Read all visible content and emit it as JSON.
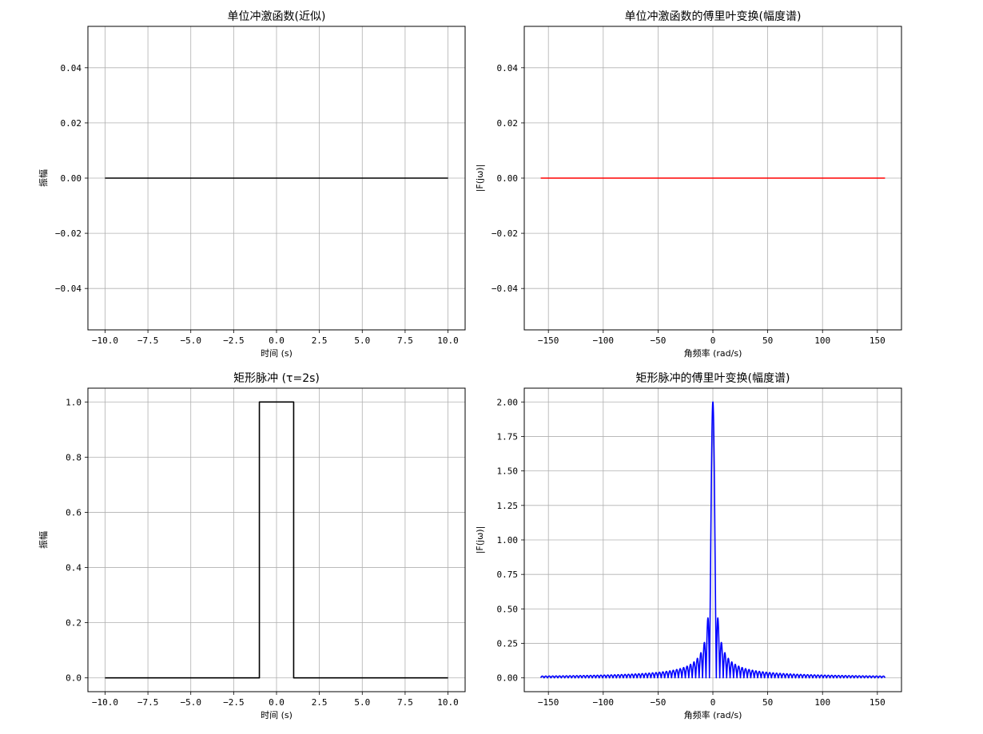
{
  "chart_data": [
    {
      "type": "line",
      "title": "单位冲激函数(近似)",
      "xlabel": "时间 (s)",
      "ylabel": "振幅",
      "xlim": [
        -11,
        11
      ],
      "ylim": [
        -0.055,
        0.055
      ],
      "xticks": [
        -10,
        -7.5,
        -5,
        -2.5,
        0,
        2.5,
        5,
        7.5,
        10
      ],
      "xtick_labels": [
        "−10.0",
        "−7.5",
        "−5.0",
        "−2.5",
        "0.0",
        "2.5",
        "5.0",
        "7.5",
        "10.0"
      ],
      "yticks": [
        -0.04,
        -0.02,
        0,
        0.02,
        0.04
      ],
      "ytick_labels": [
        "−0.04",
        "−0.02",
        "0.00",
        "0.02",
        "0.04"
      ],
      "grid": true,
      "series": [
        {
          "color": "#000000",
          "x": [
            -10,
            10
          ],
          "y": [
            0,
            0
          ]
        }
      ]
    },
    {
      "type": "line",
      "title": "单位冲激函数的傅里叶变换(幅度谱)",
      "xlabel": "角频率 (rad/s)",
      "ylabel": "|F(jω)|",
      "xlim": [
        -172,
        172
      ],
      "ylim": [
        -0.055,
        0.055
      ],
      "xticks": [
        -150,
        -100,
        -50,
        0,
        50,
        100,
        150
      ],
      "xtick_labels": [
        "−150",
        "−100",
        "−50",
        "0",
        "50",
        "100",
        "150"
      ],
      "yticks": [
        -0.04,
        -0.02,
        0,
        0.02,
        0.04
      ],
      "ytick_labels": [
        "−0.04",
        "−0.02",
        "0.00",
        "0.02",
        "0.04"
      ],
      "grid": true,
      "series": [
        {
          "color": "#ff0000",
          "x": [
            -157,
            157
          ],
          "y": [
            0,
            0
          ]
        }
      ]
    },
    {
      "type": "line",
      "title": "矩形脉冲 (τ=2s)",
      "xlabel": "时间 (s)",
      "ylabel": "振幅",
      "xlim": [
        -11,
        11
      ],
      "ylim": [
        -0.05,
        1.05
      ],
      "xticks": [
        -10,
        -7.5,
        -5,
        -2.5,
        0,
        2.5,
        5,
        7.5,
        10
      ],
      "xtick_labels": [
        "−10.0",
        "−7.5",
        "−5.0",
        "−2.5",
        "0.0",
        "2.5",
        "5.0",
        "7.5",
        "10.0"
      ],
      "yticks": [
        0,
        0.2,
        0.4,
        0.6,
        0.8,
        1.0
      ],
      "ytick_labels": [
        "0.0",
        "0.2",
        "0.4",
        "0.6",
        "0.8",
        "1.0"
      ],
      "grid": true,
      "series": [
        {
          "color": "#000000",
          "x": [
            -10,
            -1,
            -1,
            1,
            1,
            10
          ],
          "y": [
            0,
            0,
            1,
            1,
            0,
            0
          ]
        }
      ]
    },
    {
      "type": "line",
      "title": "矩形脉冲的傅里叶变换(幅度谱)",
      "xlabel": "角频率 (rad/s)",
      "ylabel": "|F(jω)|",
      "xlim": [
        -172,
        172
      ],
      "ylim": [
        -0.1,
        2.1
      ],
      "xticks": [
        -150,
        -100,
        -50,
        0,
        50,
        100,
        150
      ],
      "xtick_labels": [
        "−150",
        "−100",
        "−50",
        "0",
        "50",
        "100",
        "150"
      ],
      "yticks": [
        0,
        0.25,
        0.5,
        0.75,
        1.0,
        1.25,
        1.5,
        1.75,
        2.0
      ],
      "ytick_labels": [
        "0.00",
        "0.25",
        "0.50",
        "0.75",
        "1.00",
        "1.25",
        "1.50",
        "1.75",
        "2.00"
      ],
      "grid": true,
      "series": [
        {
          "color": "#0000ff",
          "function": "abs(2*sin(w)/w)",
          "x_range": [
            -157,
            157
          ]
        }
      ]
    }
  ]
}
